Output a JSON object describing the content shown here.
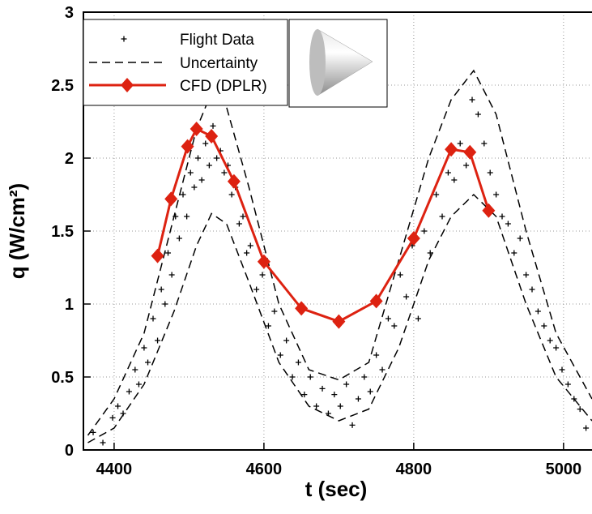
{
  "chart_data": {
    "type": "line",
    "x_label": "t (sec)",
    "y_label": "q (W/cm²)",
    "xlim": [
      4359,
      5038
    ],
    "ylim": [
      0,
      3
    ],
    "xticks": [
      4400,
      4600,
      4800,
      5000
    ],
    "yticks": [
      0,
      0.5,
      1,
      1.5,
      2,
      2.5,
      3
    ],
    "grid": true,
    "legend": "upper-left",
    "series": [
      {
        "name": "Flight Data",
        "color": "#000000",
        "style": "markers",
        "x": [
          4372,
          4385,
          4398,
          4405,
          4412,
          4420,
          4428,
          4433,
          4440,
          4445,
          4452,
          4458,
          4463,
          4468,
          4472,
          4477,
          4482,
          4487,
          4492,
          4497,
          4502,
          4507,
          4512,
          4517,
          4522,
          4527,
          4532,
          4537,
          4542,
          4547,
          4552,
          4557,
          4562,
          4567,
          4572,
          4577,
          4582,
          4590,
          4598,
          4606,
          4614,
          4622,
          4630,
          4638,
          4646,
          4654,
          4662,
          4670,
          4678,
          4686,
          4694,
          4702,
          4710,
          4718,
          4726,
          4734,
          4742,
          4750,
          4758,
          4766,
          4774,
          4782,
          4790,
          4798,
          4806,
          4814,
          4822,
          4830,
          4838,
          4846,
          4854,
          4862,
          4870,
          4878,
          4886,
          4894,
          4902,
          4910,
          4918,
          4926,
          4934,
          4942,
          4950,
          4958,
          4966,
          4974,
          4982,
          4990,
          4998,
          5006,
          5014,
          5022,
          5030
        ],
        "values": [
          0.12,
          0.05,
          0.22,
          0.3,
          0.25,
          0.4,
          0.55,
          0.45,
          0.7,
          0.6,
          0.9,
          0.75,
          1.1,
          1.0,
          1.35,
          1.2,
          1.6,
          1.45,
          1.75,
          1.6,
          1.9,
          1.8,
          2.0,
          1.85,
          2.1,
          1.95,
          2.22,
          2.0,
          2.05,
          1.9,
          1.95,
          1.75,
          1.8,
          1.55,
          1.6,
          1.35,
          1.4,
          1.1,
          1.2,
          0.85,
          0.95,
          0.65,
          0.75,
          0.5,
          0.6,
          0.38,
          0.5,
          0.3,
          0.42,
          0.25,
          0.38,
          0.3,
          0.45,
          0.17,
          0.35,
          0.5,
          0.4,
          0.65,
          0.55,
          0.9,
          0.85,
          1.2,
          1.05,
          1.4,
          0.9,
          1.5,
          1.35,
          1.75,
          1.6,
          1.9,
          1.85,
          2.1,
          1.95,
          2.4,
          2.3,
          2.1,
          1.9,
          1.75,
          1.6,
          1.55,
          1.35,
          1.45,
          1.2,
          1.1,
          0.95,
          0.85,
          0.75,
          0.7,
          0.55,
          0.45,
          0.35,
          0.28,
          0.15
        ]
      },
      {
        "name": "Uncertainty",
        "color": "#000000",
        "style": "dashed",
        "x": [
          4365,
          4400,
          4440,
          4480,
          4510,
          4530,
          4550,
          4580,
          4620,
          4660,
          4700,
          4740,
          4780,
          4820,
          4850,
          4880,
          4910,
          4950,
          4990,
          5038
        ],
        "upper": [
          0.1,
          0.35,
          0.8,
          1.6,
          2.2,
          2.45,
          2.35,
          1.8,
          1.0,
          0.55,
          0.48,
          0.6,
          1.3,
          2.0,
          2.4,
          2.6,
          2.3,
          1.5,
          0.8,
          0.35
        ],
        "lower": [
          0.05,
          0.15,
          0.45,
          0.95,
          1.4,
          1.62,
          1.55,
          1.15,
          0.6,
          0.3,
          0.2,
          0.28,
          0.7,
          1.3,
          1.6,
          1.75,
          1.6,
          1.0,
          0.5,
          0.2
        ]
      },
      {
        "name": "CFD (DPLR)",
        "color": "#dd2211",
        "style": "line-diamond",
        "x": [
          4458,
          4476,
          4498,
          4510,
          4530,
          4560,
          4600,
          4650,
          4700,
          4750,
          4800,
          4850,
          4875,
          4900
        ],
        "values": [
          1.33,
          1.72,
          2.08,
          2.2,
          2.15,
          1.84,
          1.29,
          0.97,
          0.88,
          1.02,
          1.45,
          2.06,
          2.04,
          1.64
        ]
      }
    ]
  }
}
